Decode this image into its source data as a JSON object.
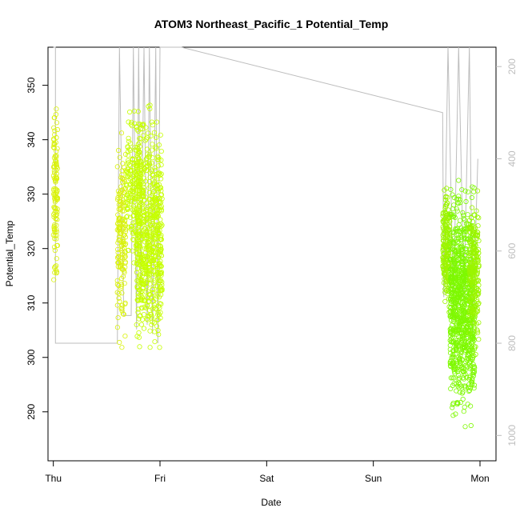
{
  "chart_data": {
    "type": "scatter",
    "title": "ATOM3 Northeast_Pacific_1 Potential_Temp",
    "xlabel": "Date",
    "ylabel": "Potential_Temp",
    "x_ticks": [
      "Thu",
      "Fri",
      "Sat",
      "Sun",
      "Mon"
    ],
    "x_domain_days": [
      -0.05,
      4.15
    ],
    "ylim": [
      281,
      357
    ],
    "y_ticks": [
      290,
      300,
      310,
      320,
      330,
      340,
      350
    ],
    "y2_ticks": [
      200,
      400,
      600,
      800,
      1000
    ],
    "y2lim": [
      1055,
      158
    ],
    "grid": false,
    "point_colors": [
      "#d9f20a",
      "#c6ff00",
      "#9cf500",
      "#7ef900"
    ],
    "line_color": "#bdbdbd",
    "series": [
      {
        "kind": "points",
        "segments": [
          {
            "t0": 0.0,
            "t1": 0.04,
            "mid": 330,
            "amp": 21,
            "n": 120,
            "color": "#d9f20a"
          },
          {
            "t0": 0.6,
            "t1": 0.68,
            "mid": 322,
            "amp": 24,
            "n": 160,
            "color": "#d9f20a"
          },
          {
            "t0": 0.68,
            "t1": 0.82,
            "mid": 332,
            "amp": 17,
            "n": 180,
            "color": "#c6ff00"
          },
          {
            "t0": 0.78,
            "t1": 1.02,
            "mid": 322,
            "amp": 28,
            "n": 650,
            "color": "#c6ff00"
          },
          {
            "t0": 3.65,
            "t1": 3.72,
            "mid": 320,
            "amp": 15,
            "n": 200,
            "color": "#9cf500"
          },
          {
            "t0": 3.72,
            "t1": 3.95,
            "mid": 310,
            "amp": 26,
            "n": 900,
            "color": "#7ef900"
          },
          {
            "t0": 3.9,
            "t1": 3.99,
            "mid": 316,
            "amp": 18,
            "n": 200,
            "color": "#9cf500"
          }
        ]
      },
      {
        "kind": "depth-line",
        "points": [
          [
            0.0,
            158
          ],
          [
            0.02,
            158
          ],
          [
            0.02,
            800
          ],
          [
            0.6,
            800
          ],
          [
            0.62,
            158
          ],
          [
            0.66,
            740
          ],
          [
            0.73,
            740
          ],
          [
            0.75,
            158
          ],
          [
            0.78,
            770
          ],
          [
            0.8,
            158
          ],
          [
            0.82,
            700
          ],
          [
            0.85,
            158
          ],
          [
            0.88,
            760
          ],
          [
            0.9,
            158
          ],
          [
            0.93,
            780
          ],
          [
            0.96,
            158
          ],
          [
            0.98,
            800
          ],
          [
            1.0,
            158
          ],
          [
            1.2,
            158
          ],
          [
            3.65,
            300
          ],
          [
            3.66,
            700
          ],
          [
            3.7,
            158
          ],
          [
            3.75,
            720
          ],
          [
            3.8,
            158
          ],
          [
            3.85,
            700
          ],
          [
            3.9,
            158
          ],
          [
            3.93,
            780
          ],
          [
            3.98,
            400
          ]
        ]
      }
    ]
  }
}
